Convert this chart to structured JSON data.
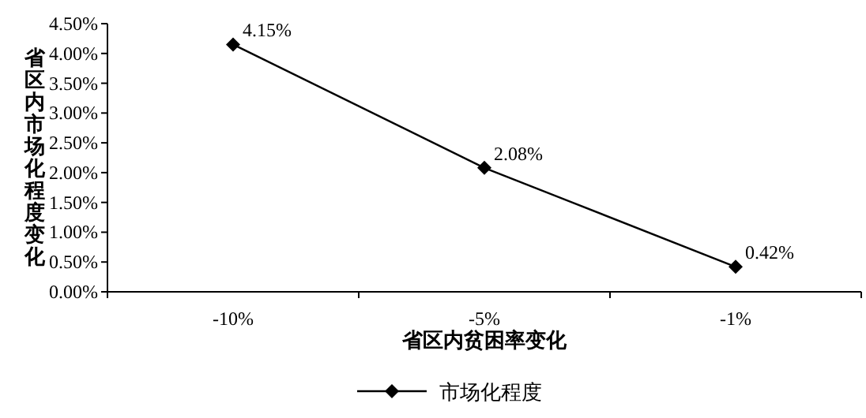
{
  "chart_data": {
    "type": "line",
    "xlabel": "省区内贫困率变化",
    "ylabel": "省区内市场化程度变化",
    "categories": [
      "-10%",
      "-5%",
      "-1%"
    ],
    "series": [
      {
        "name": "市场化程度",
        "color": "#000000",
        "values": [
          4.15,
          2.08,
          0.42
        ],
        "value_labels": [
          "4.15%",
          "2.08%",
          "0.42%"
        ]
      }
    ],
    "ylim": [
      0,
      4.5
    ],
    "yticks": [
      {
        "value": 0,
        "label": "0.00%"
      },
      {
        "value": 0.5,
        "label": "0.50%"
      },
      {
        "value": 1,
        "label": "1.00%"
      },
      {
        "value": 1.5,
        "label": "1.50%"
      },
      {
        "value": 2,
        "label": "2.00%"
      },
      {
        "value": 2.5,
        "label": "2.50%"
      },
      {
        "value": 3,
        "label": "3.00%"
      },
      {
        "value": 3.5,
        "label": "3.50%"
      },
      {
        "value": 4,
        "label": "4.00%"
      },
      {
        "value": 4.5,
        "label": "4.50%"
      }
    ],
    "grid": false,
    "legend": "bottom",
    "marker": "diamond",
    "line_style": "solid"
  }
}
